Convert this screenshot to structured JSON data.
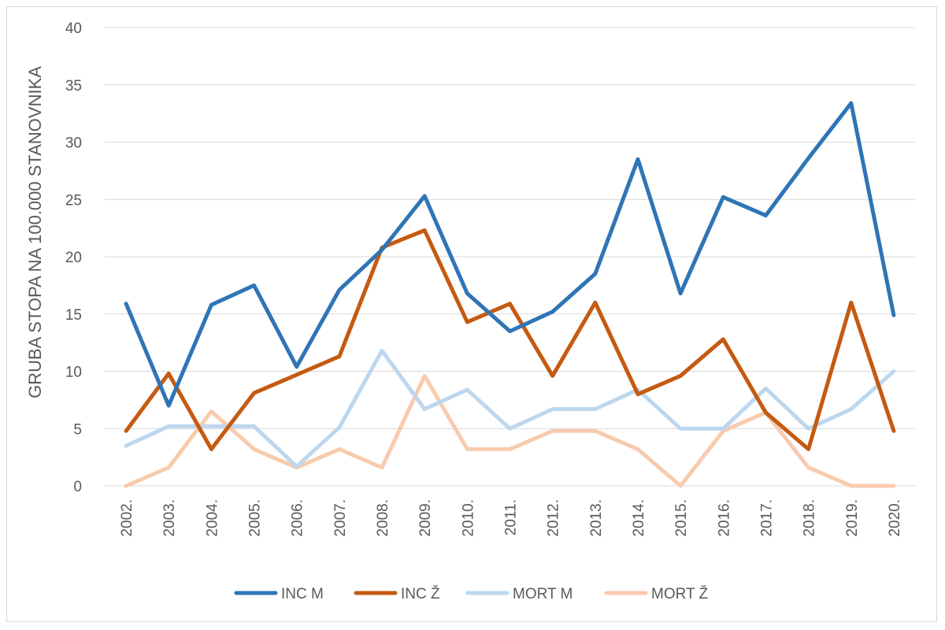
{
  "chart_data": {
    "type": "line",
    "title": "",
    "xlabel": "",
    "ylabel": "GRUBA STOPA NA 100.000 STANOVNIKA",
    "ylim": [
      0,
      40
    ],
    "yticks": [
      "0",
      "5",
      "10",
      "15",
      "20",
      "25",
      "30",
      "35",
      "40"
    ],
    "grid": true,
    "legend_position": "bottom",
    "categories": [
      "2002.",
      "2003.",
      "2004.",
      "2005.",
      "2006.",
      "2007.",
      "2008.",
      "2009.",
      "2010.",
      "2011.",
      "2012.",
      "2013.",
      "2014.",
      "2015.",
      "2016.",
      "2017.",
      "2018.",
      "2019.",
      "2020."
    ],
    "series": [
      {
        "name": "INC M",
        "color": "#2e75b6",
        "values": [
          15.9,
          7.0,
          15.8,
          17.5,
          10.4,
          17.1,
          20.6,
          25.3,
          16.8,
          13.5,
          15.2,
          18.5,
          28.5,
          16.8,
          25.2,
          23.6,
          28.6,
          33.4,
          14.9
        ]
      },
      {
        "name": "INC Ž",
        "color": "#c55a11",
        "values": [
          4.8,
          9.8,
          3.2,
          8.1,
          9.7,
          11.3,
          20.8,
          22.3,
          14.3,
          15.9,
          9.6,
          16.0,
          8.0,
          9.6,
          12.8,
          6.4,
          3.2,
          16.0,
          4.8
        ]
      },
      {
        "name": "MORT M",
        "color": "#bdd7ee",
        "values": [
          3.5,
          5.2,
          5.2,
          5.2,
          1.7,
          5.1,
          11.8,
          6.7,
          8.4,
          5.0,
          6.7,
          6.7,
          8.4,
          5.0,
          5.0,
          8.5,
          5.0,
          6.7,
          10.0
        ]
      },
      {
        "name": "MORT Ž",
        "color": "#f8cbad",
        "values": [
          0.0,
          1.6,
          6.5,
          3.2,
          1.6,
          3.2,
          1.6,
          9.6,
          3.2,
          3.2,
          4.8,
          4.8,
          3.2,
          0.0,
          4.8,
          6.4,
          1.6,
          0.0,
          0.0
        ]
      }
    ]
  }
}
